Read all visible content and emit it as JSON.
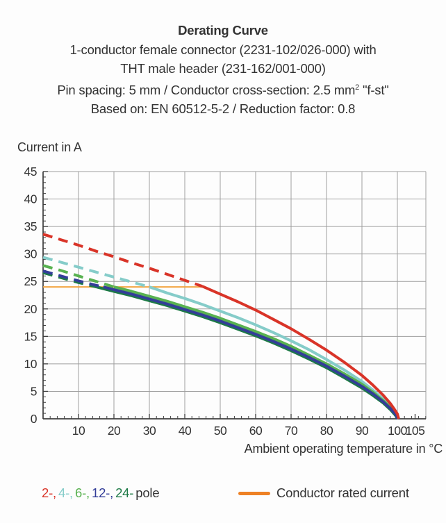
{
  "title": {
    "line1": "Derating Curve",
    "line2": "1-conductor female connector (2231-102/026-000) with",
    "line3": "THT male header (231-162/001-000)",
    "line4_pre": "Pin spacing: 5 mm / Conductor cross-section: 2.5 mm",
    "line4_sup": "2",
    "line4_post": " \"f-st\"",
    "line5": "Based on: EN 60512-5-2 / Reduction factor: 0.8"
  },
  "chart_data": {
    "type": "line",
    "title": "Derating Curve",
    "xlabel": "Ambient operating temperature in °C",
    "ylabel": "Current in A",
    "xlim": [
      0,
      108.5
    ],
    "ylim": [
      0,
      45
    ],
    "x_major_ticks": [
      10,
      20,
      30,
      40,
      50,
      60,
      70,
      80,
      90,
      100,
      105
    ],
    "x_gridlines": [
      10,
      20,
      30,
      40,
      50,
      60,
      70,
      80,
      90,
      100
    ],
    "y_major_ticks": [
      0,
      5,
      10,
      15,
      20,
      25,
      30,
      35,
      40,
      45
    ],
    "x_minor_step": 2,
    "y_minor_step": 1,
    "grid": true,
    "grid_color": "#9e9e9e",
    "axis_color": "#3d3d3d",
    "rated_current": {
      "label": "Conductor rated current",
      "value": 24,
      "from": 0,
      "to": 45.7,
      "color": "#f2a440"
    },
    "note": "Curves are dashed above the conductor rated current (24 A) and solid below it; all curves fall to 0 A at ~100 °C.",
    "draw_order": [
      1,
      2,
      4,
      3,
      0
    ],
    "series": [
      {
        "name": "2-pole",
        "color": "#d93428",
        "solid_from": 45,
        "points": [
          [
            0,
            33.6
          ],
          [
            5,
            32.6
          ],
          [
            10,
            31.6
          ],
          [
            15,
            30.5
          ],
          [
            20,
            29.5
          ],
          [
            25,
            28.4
          ],
          [
            30,
            27.4
          ],
          [
            35,
            26.3
          ],
          [
            40,
            25.2
          ],
          [
            45,
            24.1
          ],
          [
            50,
            22.7
          ],
          [
            55,
            21.3
          ],
          [
            60,
            19.8
          ],
          [
            65,
            18.1
          ],
          [
            70,
            16.4
          ],
          [
            75,
            14.5
          ],
          [
            80,
            12.5
          ],
          [
            85,
            10.3
          ],
          [
            90,
            7.9
          ],
          [
            93,
            6.2
          ],
          [
            96,
            4.3
          ],
          [
            98,
            2.8
          ],
          [
            99,
            1.9
          ],
          [
            100,
            0.9
          ],
          [
            100.4,
            0
          ]
        ]
      },
      {
        "name": "4-pole",
        "color": "#85ccc9",
        "solid_from": 30,
        "points": [
          [
            0,
            29.4
          ],
          [
            5,
            28.5
          ],
          [
            10,
            27.6
          ],
          [
            15,
            26.7
          ],
          [
            20,
            25.8
          ],
          [
            25,
            24.9
          ],
          [
            30,
            24.0
          ],
          [
            35,
            22.9
          ],
          [
            40,
            21.9
          ],
          [
            45,
            20.8
          ],
          [
            50,
            19.6
          ],
          [
            55,
            18.4
          ],
          [
            60,
            17.1
          ],
          [
            65,
            15.7
          ],
          [
            70,
            14.2
          ],
          [
            75,
            12.6
          ],
          [
            80,
            10.8
          ],
          [
            85,
            8.9
          ],
          [
            90,
            6.8
          ],
          [
            93,
            5.3
          ],
          [
            96,
            3.6
          ],
          [
            98,
            2.3
          ],
          [
            99.5,
            1.0
          ],
          [
            100.3,
            0
          ]
        ]
      },
      {
        "name": "6-pole",
        "color": "#58b150",
        "solid_from": 20,
        "points": [
          [
            0,
            27.9
          ],
          [
            5,
            27.0
          ],
          [
            10,
            26.0
          ],
          [
            15,
            25.0
          ],
          [
            20,
            24.0
          ],
          [
            25,
            23.2
          ],
          [
            30,
            22.3
          ],
          [
            35,
            21.4
          ],
          [
            40,
            20.4
          ],
          [
            45,
            19.4
          ],
          [
            50,
            18.3
          ],
          [
            55,
            17.1
          ],
          [
            60,
            15.9
          ],
          [
            65,
            14.6
          ],
          [
            70,
            13.2
          ],
          [
            75,
            11.6
          ],
          [
            80,
            10.0
          ],
          [
            85,
            8.2
          ],
          [
            90,
            6.3
          ],
          [
            93,
            4.9
          ],
          [
            96,
            3.3
          ],
          [
            98,
            2.1
          ],
          [
            99.5,
            0.9
          ],
          [
            100.2,
            0
          ]
        ]
      },
      {
        "name": "12-pole",
        "color": "#333d98",
        "solid_from": 17,
        "points": [
          [
            0,
            26.9
          ],
          [
            5,
            26.0
          ],
          [
            10,
            25.1
          ],
          [
            15,
            24.3
          ],
          [
            17,
            24.0
          ],
          [
            20,
            23.5
          ],
          [
            25,
            22.7
          ],
          [
            30,
            21.8
          ],
          [
            35,
            20.9
          ],
          [
            40,
            19.9
          ],
          [
            45,
            18.9
          ],
          [
            50,
            17.8
          ],
          [
            55,
            16.6
          ],
          [
            60,
            15.4
          ],
          [
            65,
            14.1
          ],
          [
            70,
            12.7
          ],
          [
            75,
            11.2
          ],
          [
            80,
            9.6
          ],
          [
            85,
            7.8
          ],
          [
            90,
            5.9
          ],
          [
            93,
            4.6
          ],
          [
            96,
            3.1
          ],
          [
            98,
            1.9
          ],
          [
            99.5,
            0.8
          ],
          [
            100.1,
            0
          ]
        ]
      },
      {
        "name": "24-pole",
        "color": "#1d7a46",
        "solid_from": 15,
        "points": [
          [
            0,
            26.6
          ],
          [
            5,
            25.7
          ],
          [
            10,
            24.8
          ],
          [
            15,
            24.0
          ],
          [
            20,
            23.2
          ],
          [
            25,
            22.4
          ],
          [
            30,
            21.5
          ],
          [
            35,
            20.6
          ],
          [
            40,
            19.6
          ],
          [
            45,
            18.6
          ],
          [
            50,
            17.5
          ],
          [
            55,
            16.3
          ],
          [
            60,
            15.1
          ],
          [
            65,
            13.8
          ],
          [
            70,
            12.4
          ],
          [
            75,
            10.9
          ],
          [
            80,
            9.3
          ],
          [
            85,
            7.5
          ],
          [
            90,
            5.6
          ],
          [
            93,
            4.3
          ],
          [
            96,
            2.9
          ],
          [
            98,
            1.7
          ],
          [
            99.5,
            0.6
          ],
          [
            100,
            0
          ]
        ]
      }
    ]
  },
  "axes_labels": {
    "x": "Ambient operating temperature in °C",
    "y": "Current in A"
  },
  "legend": {
    "poles": [
      {
        "label": "2-,",
        "color": "#d93428"
      },
      {
        "label": "4-,",
        "color": "#85ccc9"
      },
      {
        "label": "6-,",
        "color": "#58b150"
      },
      {
        "label": "12-,",
        "color": "#333d98"
      },
      {
        "label": "24-",
        "color": "#1d7a46"
      }
    ],
    "pole_suffix": "pole",
    "rated_swatch_color": "#ee8125",
    "rated_label": "Conductor rated current"
  }
}
